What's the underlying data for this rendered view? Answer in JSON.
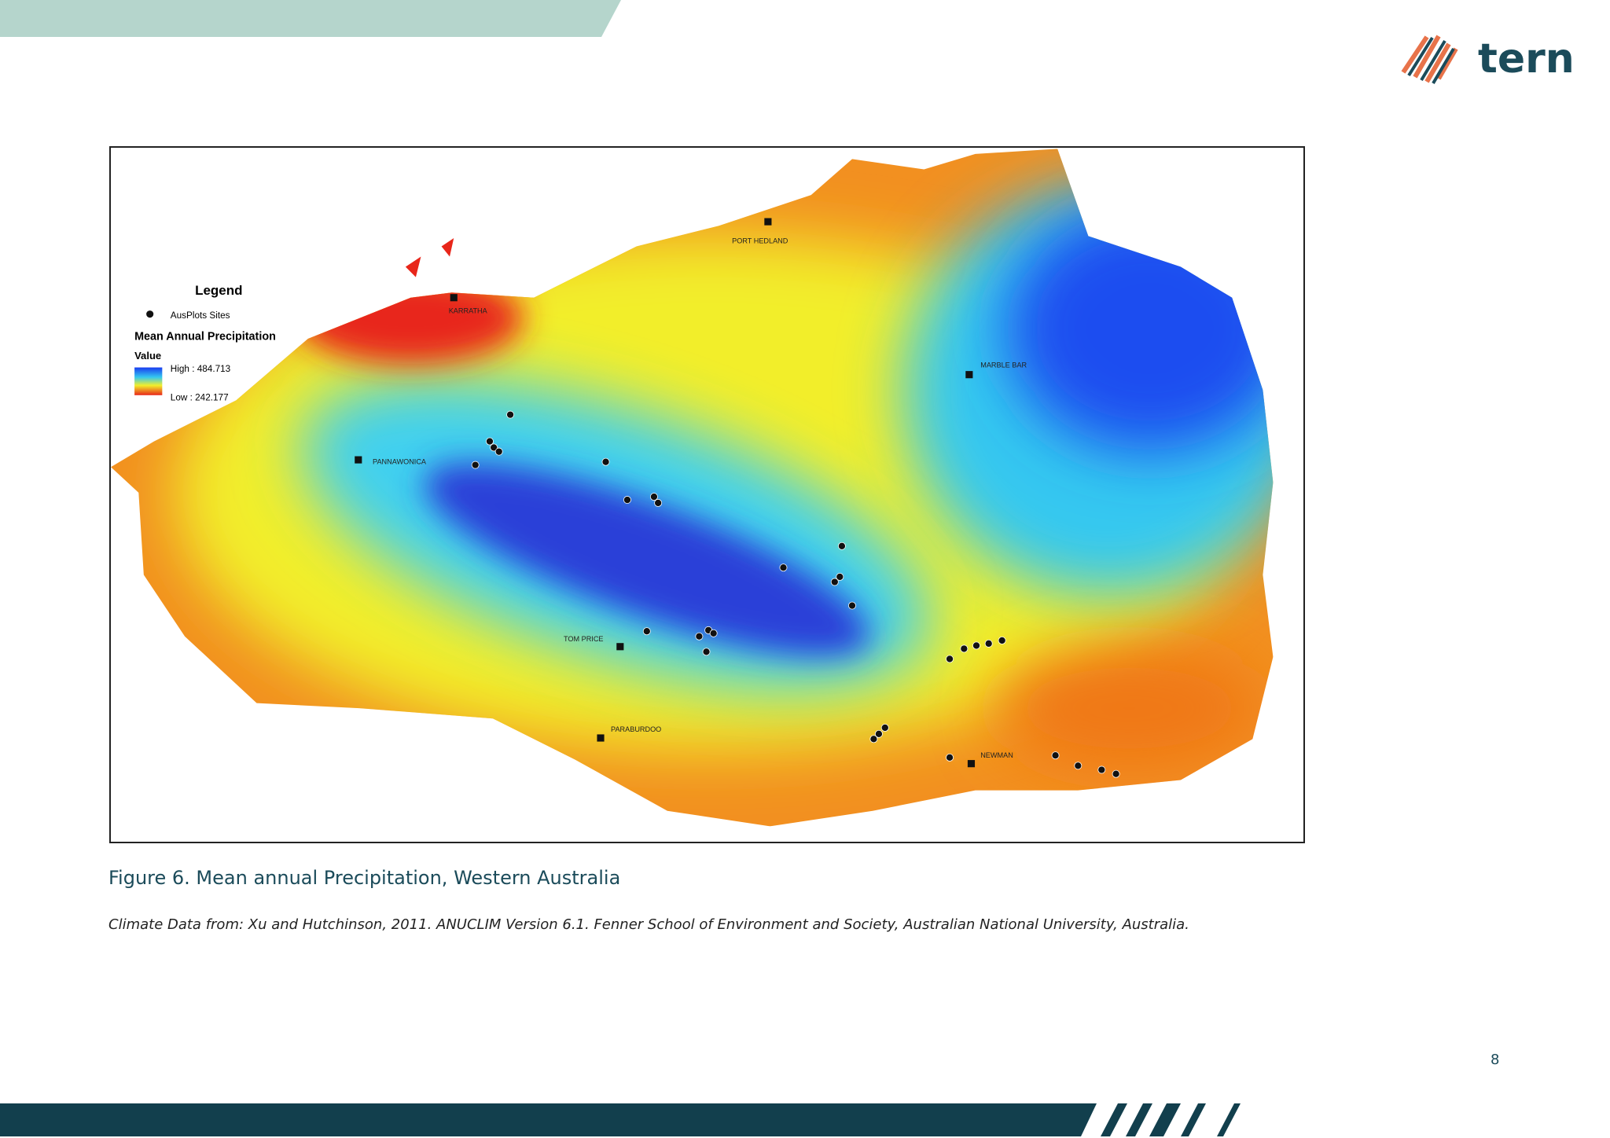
{
  "header": {
    "logo_text": "tern"
  },
  "figure": {
    "legend": {
      "title": "Legend",
      "sites": "AusPlots Sites",
      "variable": "Mean Annual Precipitation",
      "value_heading": "Value",
      "high": "High : 484.713",
      "low": "Low : 242.177"
    },
    "places": [
      "PORT HEDLAND",
      "KARRATHA",
      "MARBLE BAR",
      "PANNAWONICA",
      "TOM PRICE",
      "PARABURDOO",
      "NEWMAN"
    ]
  },
  "caption": "Figure 6. Mean annual Precipitation, Western Australia",
  "credit": "Climate Data from: Xu and Hutchinson, 2011. ANUCLIM Version 6.1. Fenner School of Environment and Society, Australian National University, Australia.",
  "page_number": "8"
}
